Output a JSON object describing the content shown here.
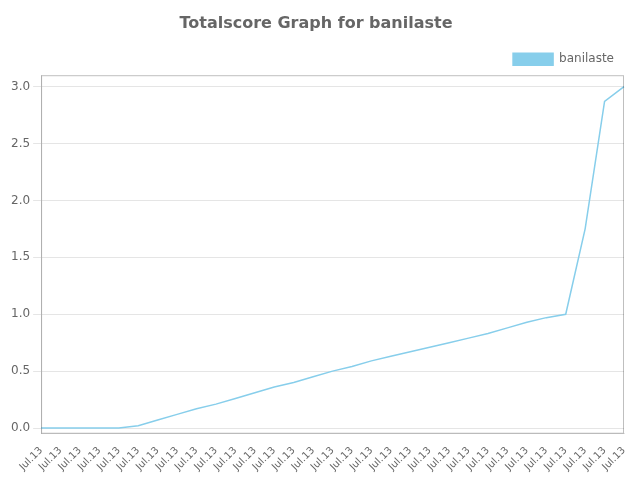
{
  "chart_data": {
    "type": "line",
    "title": "Totalscore Graph for banilaste",
    "categories": [
      "Jul.13",
      "Jul.13",
      "Jul.13",
      "Jul.13",
      "Jul.13",
      "Jul.13",
      "Jul.13",
      "Jul.13",
      "Jul.13",
      "Jul.13",
      "Jul.13",
      "Jul.13",
      "Jul.13",
      "Jul.13",
      "Jul.13",
      "Jul.13",
      "Jul.13",
      "Jul.13",
      "Jul.13",
      "Jul.13",
      "Jul.13",
      "Jul.13",
      "Jul.13",
      "Jul.13",
      "Jul.13",
      "Jul.13",
      "Jul.13",
      "Jul.13",
      "Jul.13",
      "Jul.13",
      "Jul.13"
    ],
    "series": [
      {
        "name": "banilaste",
        "color": "#87CEEB",
        "values": [
          0.0,
          0.0,
          0.0,
          0.0,
          0.0,
          0.02,
          0.07,
          0.12,
          0.17,
          0.21,
          0.26,
          0.31,
          0.36,
          0.4,
          0.45,
          0.5,
          0.54,
          0.59,
          0.63,
          0.67,
          0.71,
          0.75,
          0.79,
          0.83,
          0.88,
          0.93,
          0.97,
          1.0,
          1.75,
          2.87,
          3.0
        ]
      }
    ],
    "ylim": [
      -0.05,
      3.1
    ],
    "yticks": [
      {
        "value": 0.0,
        "label": "0.0"
      },
      0.5,
      {
        "value": 1.0,
        "label": "1.0"
      },
      1.5,
      {
        "value": 2.0,
        "label": "2.0"
      },
      2.5,
      {
        "value": 3.0,
        "label": "3.0"
      }
    ],
    "grid": true,
    "legend": "upper right"
  }
}
